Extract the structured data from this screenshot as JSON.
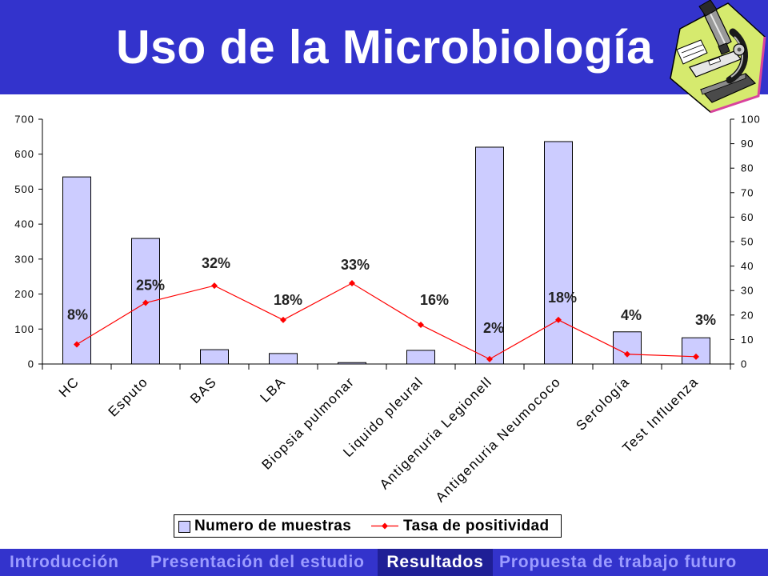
{
  "header": {
    "title": "Uso de la Microbiología"
  },
  "clipart": {
    "icon": "microscope-icon"
  },
  "colors": {
    "header_bg": "#3333cc",
    "bar_fill": "#ccccff",
    "line": "#ff0000",
    "nav_bg": "#3333cc",
    "nav_text": "#9c9cff",
    "nav_active_bg": "#1f1f96",
    "nav_active_text": "#ffffff"
  },
  "chart_data": {
    "type": "bar",
    "title": "",
    "xlabel": "",
    "categories": [
      "HC",
      "Esputo",
      "BAS",
      "LBA",
      "Biopsia pulmonar",
      "Liquido pleural",
      "Antigenuria Legionell",
      "Antigenuria Neumococo",
      "Serología",
      "Test Influenza"
    ],
    "series": [
      {
        "name": "Numero de muestras",
        "type": "bar",
        "axis": "left",
        "values": [
          535,
          359,
          41,
          30,
          4,
          39,
          620,
          636,
          92,
          75
        ]
      },
      {
        "name": "Tasa de positividad",
        "type": "line",
        "axis": "right",
        "values": [
          8,
          25,
          32,
          18,
          33,
          16,
          2,
          18,
          4,
          3
        ],
        "data_labels": [
          "8%",
          "25%",
          "32%",
          "18%",
          "33%",
          "16%",
          "2%",
          "18%",
          "4%",
          "3%"
        ]
      }
    ],
    "y_left": {
      "label": "",
      "range": [
        0,
        700
      ],
      "ticks": [
        "0",
        "100",
        "200",
        "300",
        "400",
        "500",
        "600",
        "700"
      ]
    },
    "y_right": {
      "label": "",
      "range": [
        0,
        100
      ],
      "ticks": [
        "0",
        "10",
        "20",
        "30",
        "40",
        "50",
        "60",
        "70",
        "80",
        "90",
        "100"
      ]
    },
    "grid": false,
    "legend_position": "bottom"
  },
  "nav": {
    "items": [
      {
        "label": "Introducción",
        "active": false
      },
      {
        "label": "Presentación del estudio",
        "active": false
      },
      {
        "label": "Resultados",
        "active": true
      },
      {
        "label": "Propuesta de trabajo futuro",
        "active": false
      }
    ]
  }
}
